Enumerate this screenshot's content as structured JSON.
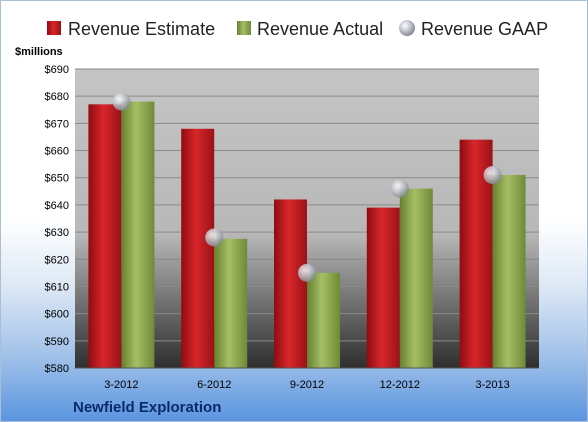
{
  "company": "Newfield Exploration",
  "chart_data": {
    "type": "bar",
    "categories": [
      "3-2012",
      "6-2012",
      "9-2012",
      "12-2012",
      "3-2013"
    ],
    "series": [
      {
        "name": "Revenue Estimate",
        "type": "bar",
        "color": "#c0171c",
        "values": [
          677,
          668,
          642,
          639,
          664
        ]
      },
      {
        "name": "Revenue Actual",
        "type": "bar",
        "color": "#8da552",
        "values": [
          678,
          627.5,
          615,
          646,
          651
        ]
      },
      {
        "name": "Revenue GAAP",
        "type": "scatter",
        "color": "#b8bcc4",
        "values": [
          678,
          628,
          615,
          646,
          651
        ]
      }
    ],
    "ylabel": "$millions",
    "ylim": [
      580,
      690
    ],
    "yticks": [
      580,
      590,
      600,
      610,
      620,
      630,
      640,
      650,
      660,
      670,
      680,
      690
    ],
    "ytick_prefix": "$",
    "grid": true,
    "legend_position": "top"
  }
}
